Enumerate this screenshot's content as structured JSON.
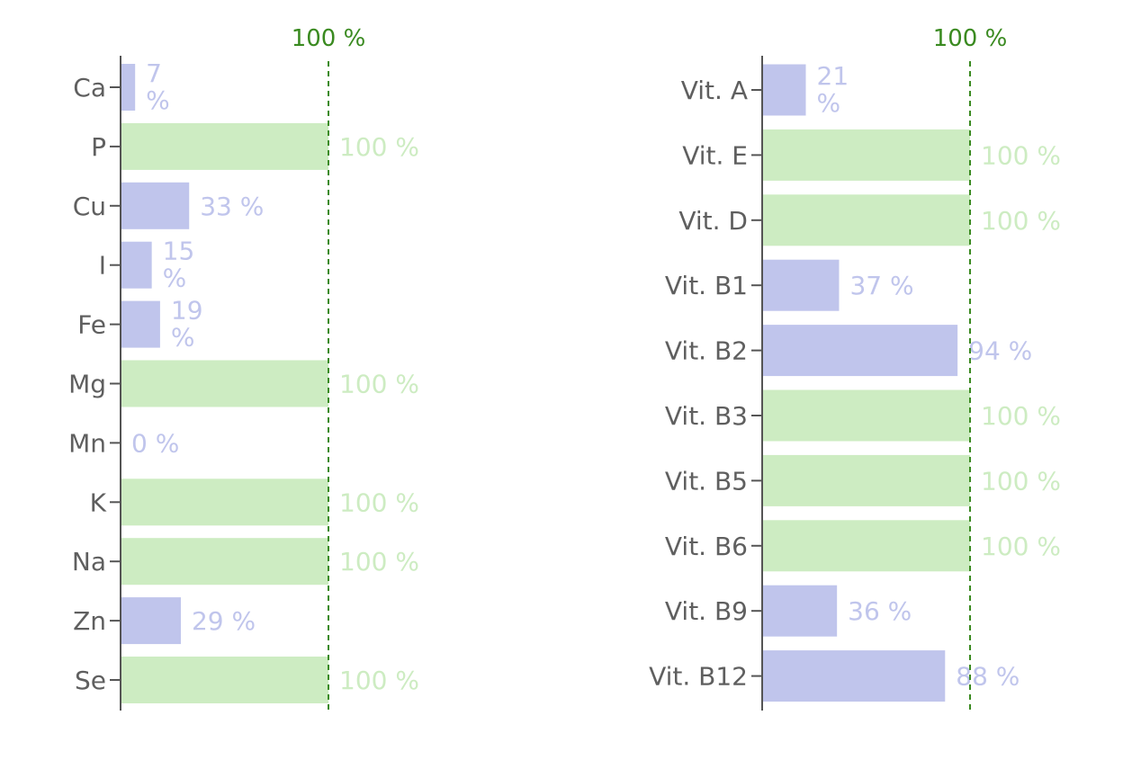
{
  "colors": {
    "below_target": "#c0c5ec",
    "at_target": "#cdecc2",
    "axis_text": "#5f5f5f",
    "axis_line": "#555555",
    "reference_line": "#3a8a20"
  },
  "chart_data": [
    {
      "type": "bar",
      "orientation": "horizontal",
      "title": "",
      "xlim": [
        0,
        100
      ],
      "reference_line": {
        "value": 100,
        "label": "100 %"
      },
      "categories": [
        "Ca",
        "P",
        "Cu",
        "I",
        "Fe",
        "Mg",
        "Mn",
        "K",
        "Na",
        "Zn",
        "Se"
      ],
      "values": [
        7,
        100,
        33,
        15,
        19,
        100,
        0,
        100,
        100,
        29,
        100
      ],
      "value_suffix": " %"
    },
    {
      "type": "bar",
      "orientation": "horizontal",
      "title": "",
      "xlim": [
        0,
        100
      ],
      "reference_line": {
        "value": 100,
        "label": "100 %"
      },
      "categories": [
        "Vit. A",
        "Vit. E",
        "Vit. D",
        "Vit. B1",
        "Vit. B2",
        "Vit. B3",
        "Vit. B5",
        "Vit. B6",
        "Vit. B9",
        "Vit. B12"
      ],
      "values": [
        21,
        100,
        100,
        37,
        94,
        100,
        100,
        100,
        36,
        88
      ],
      "value_suffix": " %"
    }
  ]
}
